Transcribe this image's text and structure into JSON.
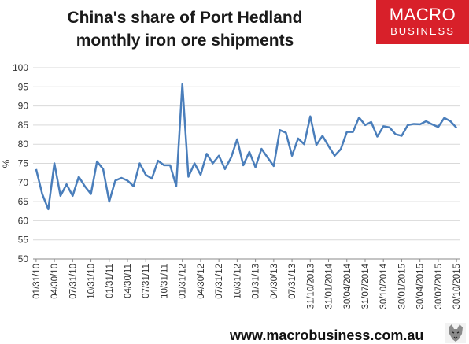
{
  "header": {
    "title_line1": "China's share of Port Hedland",
    "title_line2": "monthly iron ore shipments"
  },
  "logo": {
    "line1": "MACRO",
    "line2": "BUSINESS"
  },
  "footer": {
    "url": "www.macrobusiness.com.au"
  },
  "colors": {
    "series": "#4a7ebb",
    "logo_bg": "#d8202a",
    "grid": "#d9d9d9"
  },
  "chart_data": {
    "type": "line",
    "title": "China's share of Port Hedland monthly iron ore shipments",
    "ylabel": "%",
    "ylim": [
      50,
      100
    ],
    "yticks": [
      50,
      55,
      60,
      65,
      70,
      75,
      80,
      85,
      90,
      95,
      100
    ],
    "grid": true,
    "legend": "none",
    "xtick_labels": [
      "01/31/10",
      "04/30/10",
      "07/31/10",
      "10/31/10",
      "01/31/11",
      "04/30/11",
      "07/31/11",
      "10/31/11",
      "01/31/12",
      "04/30/12",
      "07/31/12",
      "10/31/12",
      "01/31/13",
      "04/30/13",
      "07/31/13",
      "31/10/2013",
      "31/01/2014",
      "30/04/2014",
      "31/07/2014",
      "30/10/2014",
      "30/01/2015",
      "30/04/2015",
      "30/07/2015",
      "30/10/2015"
    ],
    "series": [
      {
        "values": [
          73.5,
          67,
          63,
          75,
          66.5,
          69.5,
          66.5,
          71.5,
          69,
          67,
          75.5,
          73.5,
          65,
          70.5,
          71.2,
          70.5,
          69,
          75,
          72,
          71,
          75.7,
          74.5,
          74.5,
          69,
          95.7,
          71.5,
          75,
          72,
          77.5,
          75,
          77,
          73.5,
          76.5,
          81.3,
          74.5,
          78,
          74,
          78.8,
          76.5,
          74.3,
          83.7,
          83,
          77,
          81.5,
          80,
          87.3,
          79.8,
          82.2,
          79.5,
          77,
          78.7,
          83.2,
          83.2,
          87,
          85,
          85.8,
          82,
          84.7,
          84.4,
          82.6,
          82.2,
          85,
          85.3,
          85.2,
          86,
          85.2,
          84.5,
          86.9,
          86,
          84.3
        ]
      }
    ]
  }
}
